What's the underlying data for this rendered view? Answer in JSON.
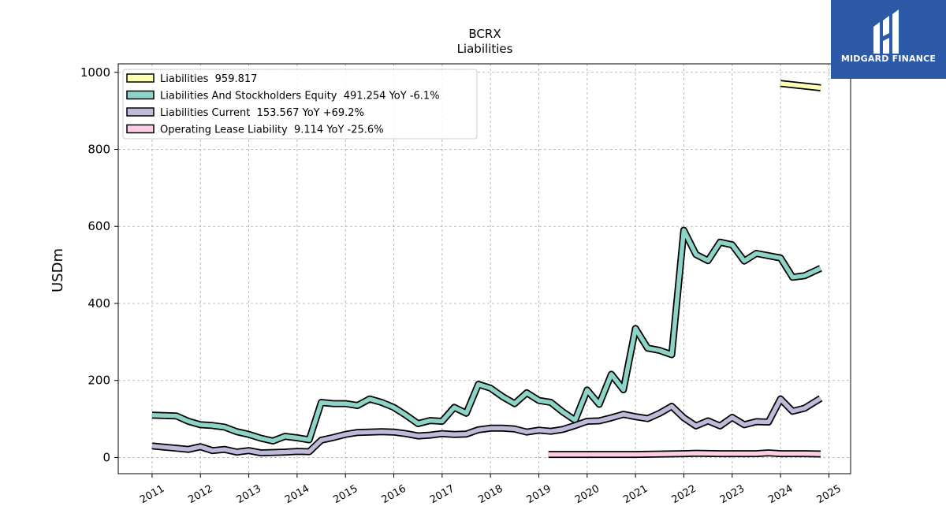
{
  "logo": {
    "text": "MIDGARD FINANCE"
  },
  "chart_data": {
    "type": "line",
    "title": "BCRX",
    "subtitle": "Liabilities",
    "ylabel": "USDm",
    "xlim": [
      2010.3,
      2025.45
    ],
    "ylim": [
      -42,
      1022
    ],
    "grid": true,
    "legend_position": "top-left",
    "yticks": [
      0,
      200,
      400,
      600,
      800,
      1000
    ],
    "xticks": [
      2011,
      2012,
      2013,
      2014,
      2015,
      2016,
      2017,
      2018,
      2019,
      2020,
      2021,
      2022,
      2023,
      2024,
      2025
    ],
    "series": [
      {
        "name": "Liabilities",
        "legend": "Liabilities  959.817",
        "color": "#ffffb3",
        "points": [
          [
            2024.0,
            971
          ],
          [
            2024.83,
            959.8
          ]
        ]
      },
      {
        "name": "Liabilities And Stockholders Equity",
        "legend": "Liabilities And Stockholders Equity  491.254 YoY -6.1%",
        "color": "#8dd3c7",
        "points": [
          [
            2011.0,
            110
          ],
          [
            2011.25,
            109
          ],
          [
            2011.5,
            108
          ],
          [
            2011.75,
            94
          ],
          [
            2012.0,
            85
          ],
          [
            2012.25,
            83
          ],
          [
            2012.5,
            79
          ],
          [
            2012.75,
            67
          ],
          [
            2013.0,
            60
          ],
          [
            2013.25,
            50
          ],
          [
            2013.5,
            43
          ],
          [
            2013.75,
            55
          ],
          [
            2014.0,
            51
          ],
          [
            2014.25,
            46
          ],
          [
            2014.5,
            143
          ],
          [
            2014.75,
            140
          ],
          [
            2015.0,
            140
          ],
          [
            2015.25,
            135
          ],
          [
            2015.5,
            152
          ],
          [
            2015.75,
            143
          ],
          [
            2016.0,
            130
          ],
          [
            2016.25,
            110
          ],
          [
            2016.5,
            88
          ],
          [
            2016.75,
            96
          ],
          [
            2017.0,
            94
          ],
          [
            2017.25,
            130
          ],
          [
            2017.5,
            115
          ],
          [
            2017.75,
            190
          ],
          [
            2018.0,
            180
          ],
          [
            2018.25,
            158
          ],
          [
            2018.5,
            140
          ],
          [
            2018.75,
            168
          ],
          [
            2019.0,
            148
          ],
          [
            2019.25,
            143
          ],
          [
            2019.5,
            118
          ],
          [
            2019.75,
            97
          ],
          [
            2020.0,
            175
          ],
          [
            2020.25,
            138
          ],
          [
            2020.5,
            216
          ],
          [
            2020.75,
            176
          ],
          [
            2021.0,
            335
          ],
          [
            2021.25,
            284
          ],
          [
            2021.5,
            278
          ],
          [
            2021.75,
            267
          ],
          [
            2022.0,
            590
          ],
          [
            2022.25,
            527
          ],
          [
            2022.5,
            511
          ],
          [
            2022.75,
            559
          ],
          [
            2023.0,
            552
          ],
          [
            2023.25,
            510
          ],
          [
            2023.5,
            530
          ],
          [
            2023.75,
            524
          ],
          [
            2024.0,
            518
          ],
          [
            2024.25,
            468
          ],
          [
            2024.5,
            472
          ],
          [
            2024.83,
            491.3
          ]
        ]
      },
      {
        "name": "Liabilities Current",
        "legend": "Liabilities Current  153.567 YoY +69.2%",
        "color": "#bebada",
        "points": [
          [
            2011.0,
            30
          ],
          [
            2011.25,
            27
          ],
          [
            2011.5,
            24
          ],
          [
            2011.75,
            21
          ],
          [
            2012.0,
            28
          ],
          [
            2012.25,
            18
          ],
          [
            2012.5,
            21
          ],
          [
            2012.75,
            14
          ],
          [
            2013.0,
            18
          ],
          [
            2013.25,
            12
          ],
          [
            2013.5,
            13
          ],
          [
            2013.75,
            14
          ],
          [
            2014.0,
            16
          ],
          [
            2014.25,
            15
          ],
          [
            2014.5,
            45
          ],
          [
            2014.75,
            52
          ],
          [
            2015.0,
            60
          ],
          [
            2015.25,
            65
          ],
          [
            2015.5,
            66
          ],
          [
            2015.75,
            67
          ],
          [
            2016.0,
            66
          ],
          [
            2016.25,
            62
          ],
          [
            2016.5,
            56
          ],
          [
            2016.75,
            58
          ],
          [
            2017.0,
            62
          ],
          [
            2017.25,
            60
          ],
          [
            2017.5,
            61
          ],
          [
            2017.75,
            72
          ],
          [
            2018.0,
            76
          ],
          [
            2018.25,
            76
          ],
          [
            2018.5,
            74
          ],
          [
            2018.75,
            66
          ],
          [
            2019.0,
            71
          ],
          [
            2019.25,
            68
          ],
          [
            2019.5,
            73
          ],
          [
            2019.75,
            83
          ],
          [
            2020.0,
            94
          ],
          [
            2020.25,
            95
          ],
          [
            2020.5,
            103
          ],
          [
            2020.75,
            112
          ],
          [
            2021.0,
            106
          ],
          [
            2021.25,
            101
          ],
          [
            2021.5,
            115
          ],
          [
            2021.75,
            133
          ],
          [
            2022.0,
            103
          ],
          [
            2022.25,
            82
          ],
          [
            2022.5,
            95
          ],
          [
            2022.75,
            82
          ],
          [
            2023.0,
            104
          ],
          [
            2023.25,
            85
          ],
          [
            2023.5,
            93
          ],
          [
            2023.75,
            92
          ],
          [
            2024.0,
            152
          ],
          [
            2024.25,
            120
          ],
          [
            2024.5,
            128
          ],
          [
            2024.83,
            153.6
          ]
        ]
      },
      {
        "name": "Operating Lease Liability",
        "legend": "Operating Lease Liability  9.114 YoY -25.6%",
        "color": "#fccde5",
        "points": [
          [
            2019.2,
            8
          ],
          [
            2019.5,
            8
          ],
          [
            2020.0,
            8
          ],
          [
            2020.5,
            8
          ],
          [
            2021.0,
            8
          ],
          [
            2021.5,
            9
          ],
          [
            2022.0,
            10
          ],
          [
            2022.25,
            11
          ],
          [
            2022.75,
            10
          ],
          [
            2023.25,
            10
          ],
          [
            2023.5,
            10
          ],
          [
            2023.75,
            12
          ],
          [
            2024.0,
            10
          ],
          [
            2024.5,
            10
          ],
          [
            2024.83,
            9.1
          ]
        ]
      }
    ]
  }
}
